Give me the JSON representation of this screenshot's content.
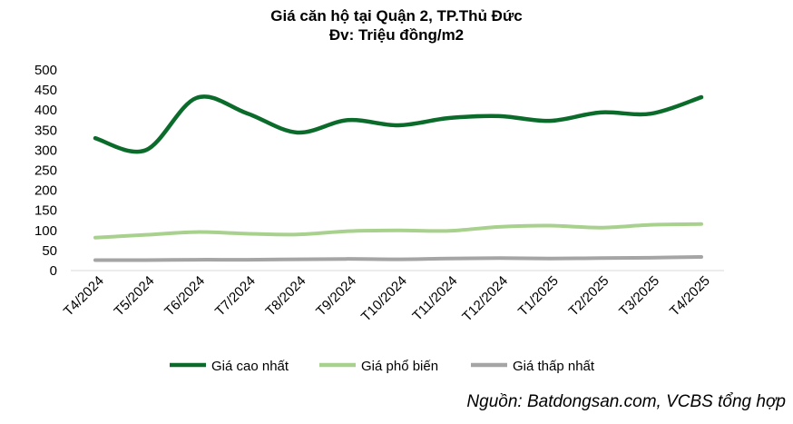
{
  "chart_data": {
    "type": "line",
    "title": "Giá căn hộ tại Quận 2, TP.Thủ Đức",
    "subtitle": "Đv: Triệu đồng/m2",
    "xlabel": "",
    "ylabel": "",
    "ylim": [
      0,
      500
    ],
    "yticks": [
      0,
      50,
      100,
      150,
      200,
      250,
      300,
      350,
      400,
      450,
      500
    ],
    "categories": [
      "T4/2024",
      "T5/2024",
      "T6/2024",
      "T7/2024",
      "T8/2024",
      "T9/2024",
      "T10/2024",
      "T11/2024",
      "T12/2024",
      "T1/2025",
      "T2/2025",
      "T3/2025",
      "T4/2025"
    ],
    "series": [
      {
        "name": "Giá cao nhất",
        "color": "#0b6b2a",
        "values": [
          330,
          300,
          430,
          392,
          344,
          375,
          362,
          380,
          385,
          373,
          394,
          391,
          432
        ]
      },
      {
        "name": "Giá phổ biến",
        "color": "#a9d18e",
        "values": [
          82,
          89,
          96,
          92,
          90,
          98,
          100,
          99,
          109,
          112,
          107,
          114,
          116
        ]
      },
      {
        "name": "Giá thấp nhất",
        "color": "#a5a5a5",
        "values": [
          26,
          26,
          27,
          27,
          28,
          29,
          28,
          30,
          31,
          30,
          31,
          32,
          34
        ]
      }
    ],
    "grid": false,
    "legend_position": "bottom"
  },
  "source": "Nguồn: Batdongsan.com, VCBS tổng hợp"
}
